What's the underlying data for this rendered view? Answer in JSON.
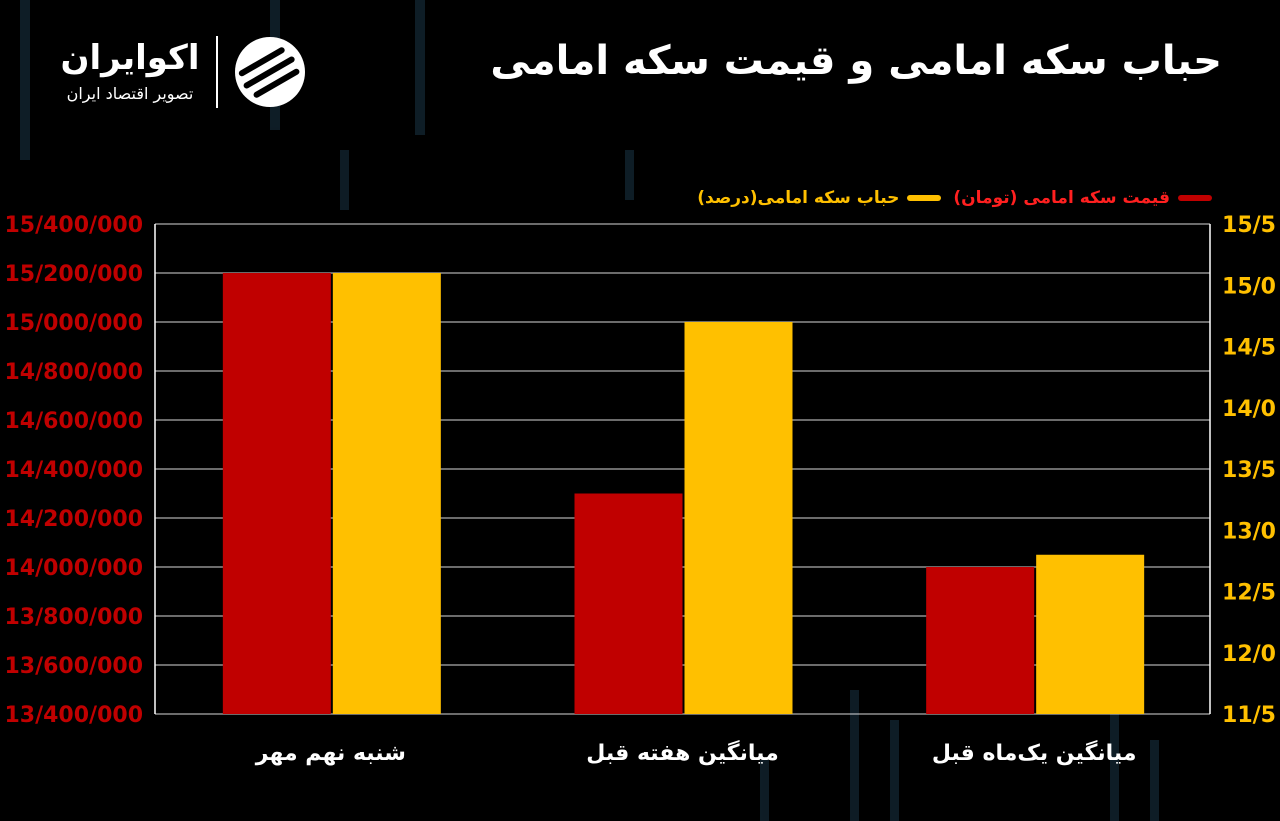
{
  "title": "حباب سکه امامی و قیمت سکه امامی",
  "logo": {
    "name": "اکوایران",
    "tagline": "تصویر اقتصاد ایران",
    "icon": "ecoiran-logo-icon"
  },
  "colors": {
    "price": "#c00000",
    "bubble": "#ffc000",
    "background": "#000000",
    "axis": "#ffffff"
  },
  "chart_data": {
    "type": "bar",
    "categories": [
      "شنبه نهم مهر",
      "میانگین هفته قبل",
      "میانگین یک‌ماه قبل"
    ],
    "series": [
      {
        "name": "قیمت سکه امامی (تومان)",
        "axis": "left",
        "values": [
          15200000,
          14300000,
          14000000
        ]
      },
      {
        "name": "حباب سکه امامی(درصد)",
        "axis": "right",
        "values": [
          15.1,
          14.7,
          12.8
        ]
      }
    ],
    "y_left": {
      "ylim": [
        13400000,
        15400000
      ],
      "ticks": [
        "13/400/000",
        "13/600/000",
        "13/800/000",
        "14/000/000",
        "14/200/000",
        "14/400/000",
        "14/600/000",
        "14/800/000",
        "15/000/000",
        "15/200/000",
        "15/400/000"
      ]
    },
    "y_right": {
      "ylim": [
        11.5,
        15.5
      ],
      "ticks": [
        "11/5",
        "12/0",
        "12/5",
        "13/0",
        "13/5",
        "14/0",
        "14/5",
        "15/0",
        "15/5"
      ]
    },
    "legend_position": "top-right",
    "grid": "horizontal"
  }
}
